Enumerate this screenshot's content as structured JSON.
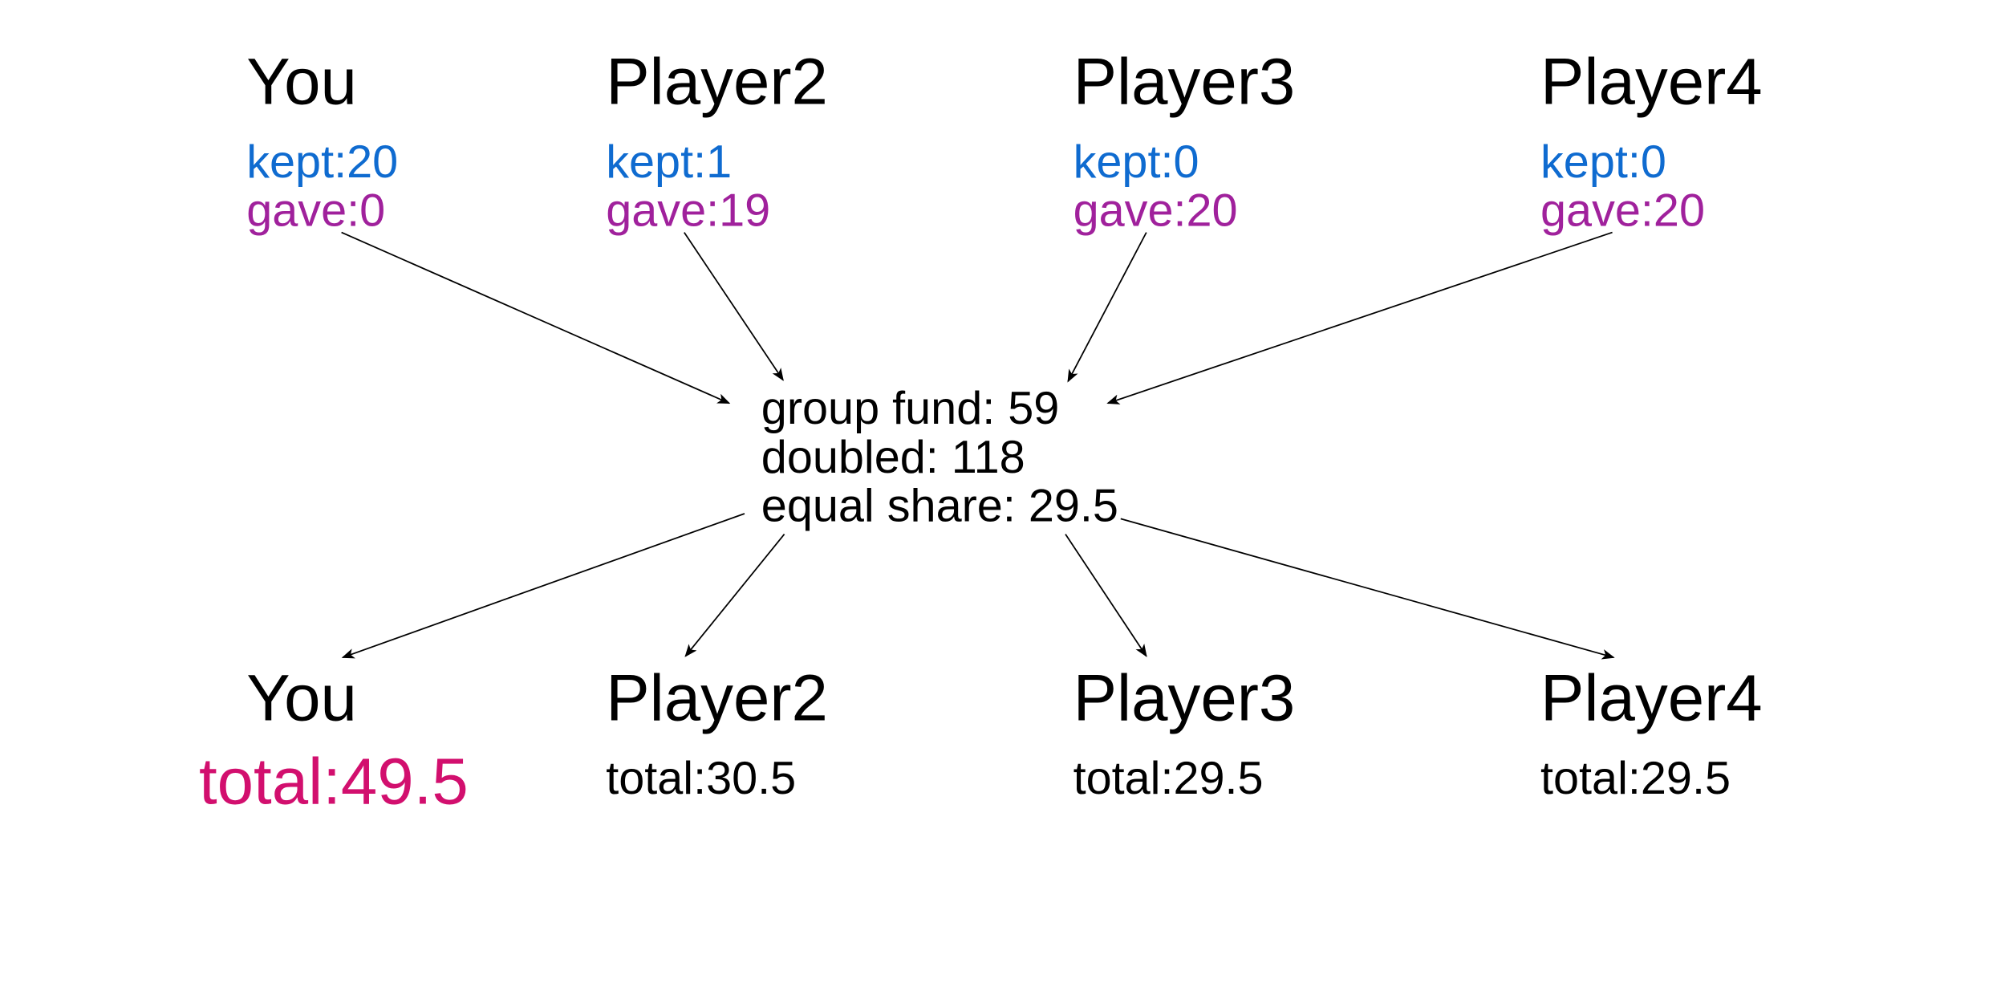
{
  "contributions": [
    {
      "name": "You",
      "kept_label": "kept:20",
      "gave_label": "gave:0"
    },
    {
      "name": "Player2",
      "kept_label": "kept:1",
      "gave_label": "gave:19"
    },
    {
      "name": "Player3",
      "kept_label": "kept:0",
      "gave_label": "gave:20"
    },
    {
      "name": "Player4",
      "kept_label": "kept:0",
      "gave_label": "gave:20"
    }
  ],
  "group_fund": {
    "fund_label": "group fund: 59",
    "doubled_label": "doubled: 118",
    "share_label": "equal share: 29.5"
  },
  "payouts": [
    {
      "name": "You",
      "total_label": "total:49.5"
    },
    {
      "name": "Player2",
      "total_label": "total:30.5"
    },
    {
      "name": "Player3",
      "total_label": "total:29.5"
    },
    {
      "name": "Player4",
      "total_label": "total:29.5"
    }
  ],
  "colors": {
    "kept": "#0f6bd0",
    "gave": "#a0219c",
    "your_total": "#d20f6e",
    "text": "#000000"
  }
}
